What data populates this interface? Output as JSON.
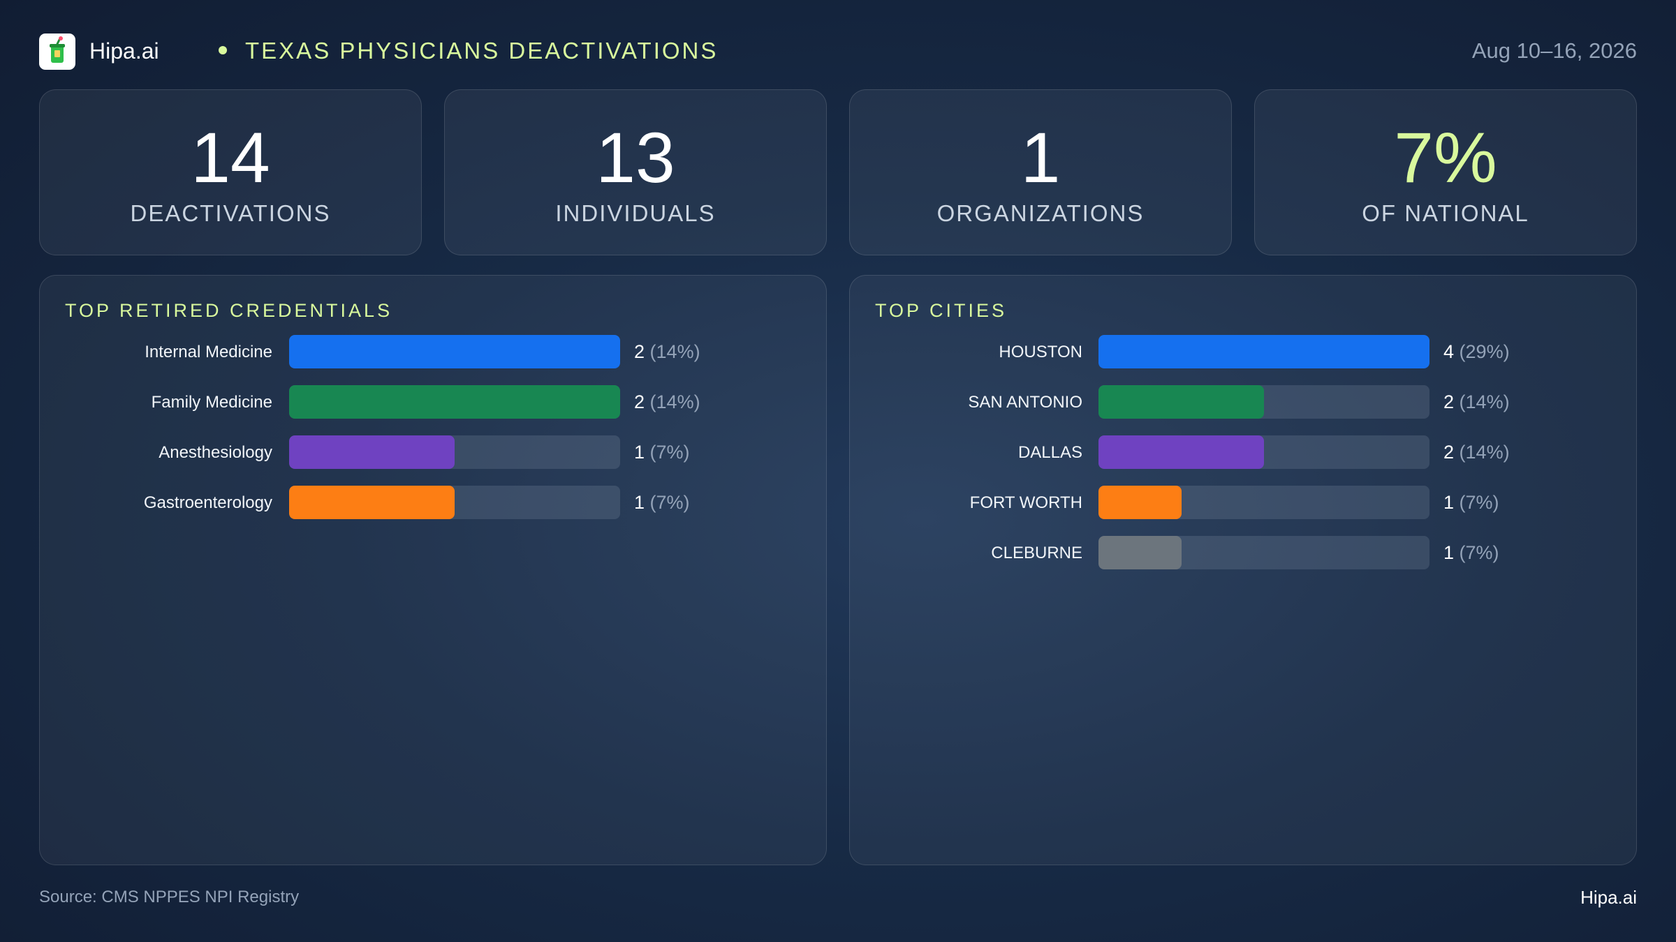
{
  "header": {
    "brand": "Hipa.ai",
    "title": "TEXAS PHYSICIANS DEACTIVATIONS",
    "date": "Aug 10–16, 2026",
    "logo_icon": "cup-icon"
  },
  "stats": [
    {
      "value": "14",
      "label": "DEACTIVATIONS",
      "accent": false
    },
    {
      "value": "13",
      "label": "INDIVIDUALS",
      "accent": false
    },
    {
      "value": "1",
      "label": "ORGANIZATIONS",
      "accent": false
    },
    {
      "value": "7%",
      "label": "OF NATIONAL",
      "accent": true
    }
  ],
  "colors": {
    "accent": "#d9f99d",
    "blue": "#1570ef",
    "green": "#188752",
    "purple": "#6f42c1",
    "orange": "#fd7e14",
    "gray": "#6c757d"
  },
  "chart_data": [
    {
      "type": "bar",
      "orientation": "horizontal",
      "title": "TOP RETIRED CREDENTIALS",
      "categories": [
        "Internal Medicine",
        "Family Medicine",
        "Anesthesiology",
        "Gastroenterology"
      ],
      "values": [
        2,
        2,
        1,
        1
      ],
      "percent_labels": [
        "(14%)",
        "(14%)",
        "(7%)",
        "(7%)"
      ],
      "colors": [
        "#1570ef",
        "#188752",
        "#6f42c1",
        "#fd7e14"
      ],
      "xlim": [
        0,
        2
      ]
    },
    {
      "type": "bar",
      "orientation": "horizontal",
      "title": "TOP CITIES",
      "categories": [
        "HOUSTON",
        "SAN ANTONIO",
        "DALLAS",
        "FORT WORTH",
        "CLEBURNE"
      ],
      "values": [
        4,
        2,
        2,
        1,
        1
      ],
      "percent_labels": [
        "(29%)",
        "(14%)",
        "(14%)",
        "(7%)",
        "(7%)"
      ],
      "colors": [
        "#1570ef",
        "#188752",
        "#6f42c1",
        "#fd7e14",
        "#6c757d"
      ],
      "xlim": [
        0,
        4
      ]
    }
  ],
  "footer": {
    "source": "Source: CMS NPPES NPI Registry",
    "brand": "Hipa.ai"
  }
}
